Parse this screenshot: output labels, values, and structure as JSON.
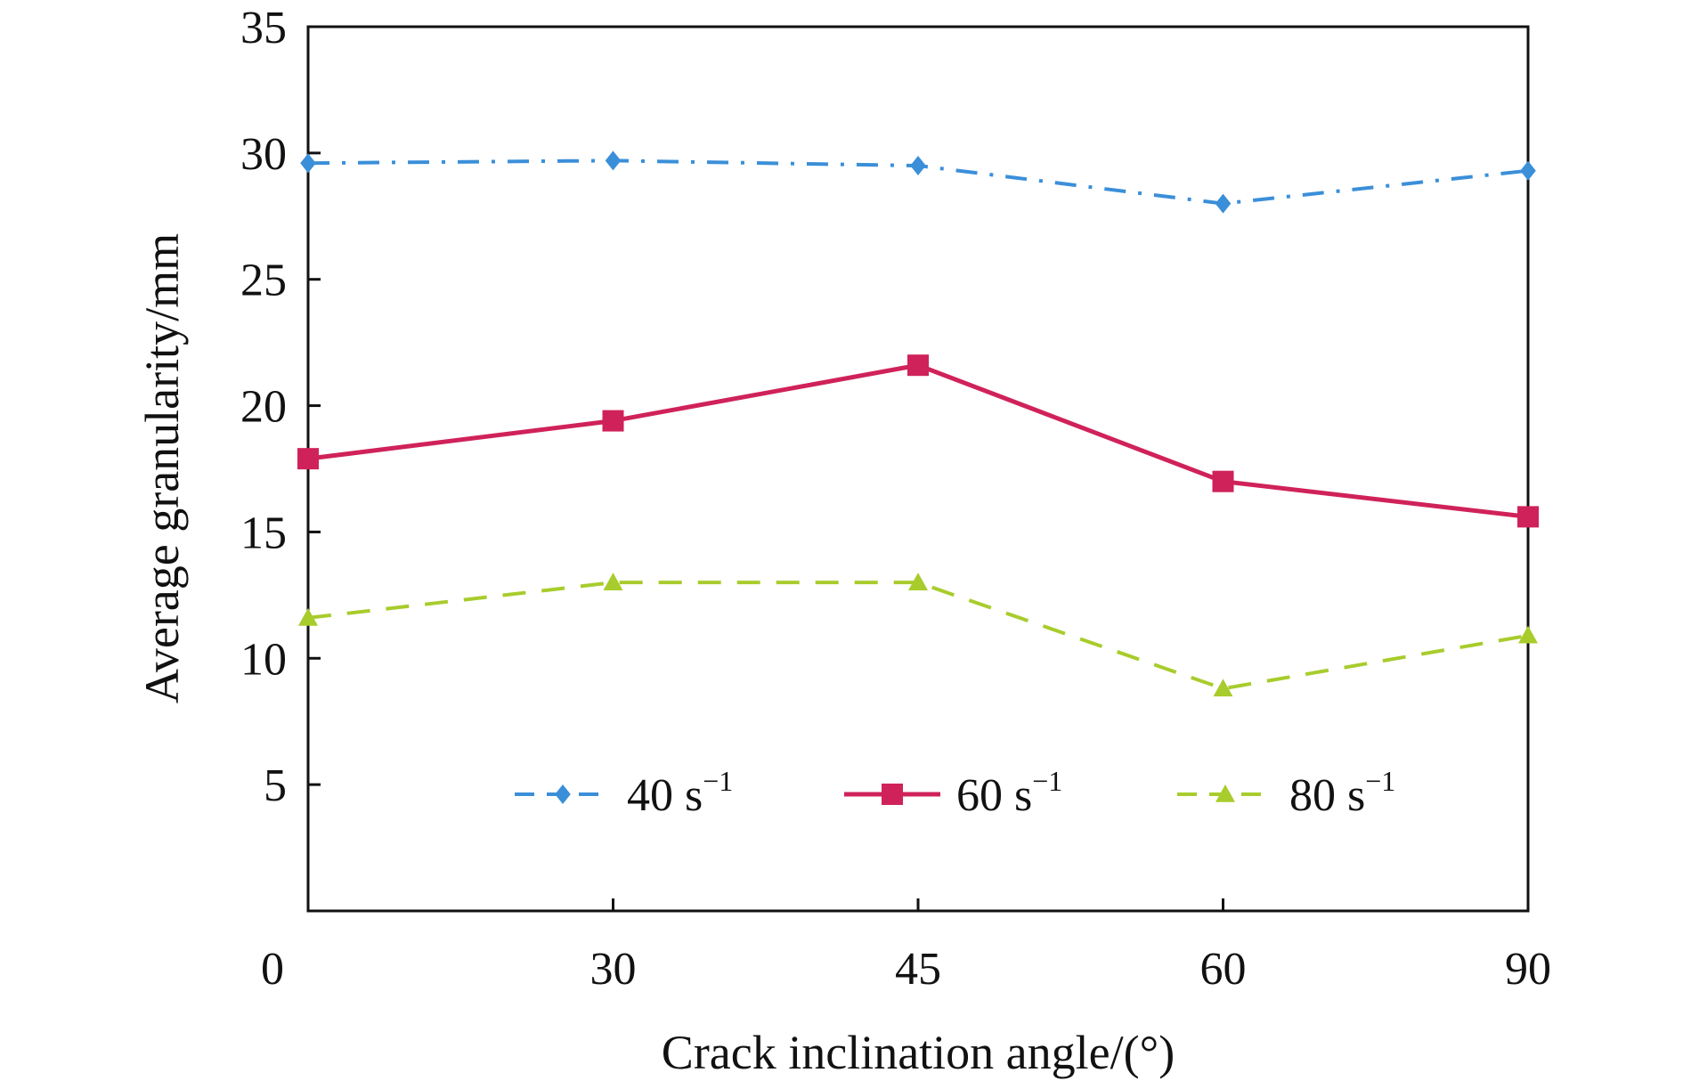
{
  "chart_data": {
    "type": "line",
    "categories": [
      "0",
      "30",
      "45",
      "60",
      "90"
    ],
    "xlabel": "Crack inclination angle/(°)",
    "ylabel": "Average granularity/mm",
    "ylim": [
      0,
      35
    ],
    "yticks": [
      "5",
      "10",
      "15",
      "20",
      "25",
      "30",
      "35"
    ],
    "grid": false,
    "legend_position": "bottom-center",
    "series": [
      {
        "name": "40 s",
        "name_sup": "−1",
        "values": [
          29.6,
          29.7,
          29.5,
          28.0,
          29.3
        ],
        "color": "#3b8fd9",
        "marker": "diamond",
        "line_style": "dash-dot"
      },
      {
        "name": "60 s",
        "name_sup": "−1",
        "values": [
          17.9,
          19.4,
          21.6,
          17.0,
          15.6
        ],
        "color": "#d0225a",
        "marker": "square",
        "line_style": "solid"
      },
      {
        "name": "80 s",
        "name_sup": "−1",
        "values": [
          11.6,
          13.0,
          13.0,
          8.8,
          10.9
        ],
        "color": "#a8cc2c",
        "marker": "triangle",
        "line_style": "dashed"
      }
    ]
  }
}
